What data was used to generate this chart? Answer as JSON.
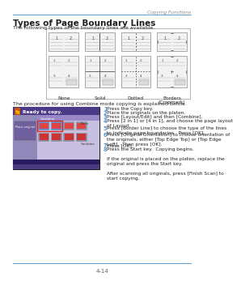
{
  "page_header_right": "Copying Functions",
  "page_header_line_color": "#5b9bd5",
  "title": "Types of Page Boundary Lines",
  "subtitle": "The following types of the boundary lines are available.",
  "boundary_labels": [
    "None",
    "Solid",
    "Dotted",
    "Borders\n(Cropmark)"
  ],
  "procedure_intro": "The procedure for using Combine mode copying is explained below.",
  "steps_raw": [
    [
      1,
      "Press the Copy key.",
      "Copy"
    ],
    [
      2,
      "Place the originals on the platen.",
      null
    ],
    [
      3,
      "Press [Layout/Edit] and then [Combine].",
      null
    ],
    [
      4,
      "Press [2 in 1] or [4 in 1], and choose the page layout\nof Layout.",
      null
    ],
    [
      5,
      "Press [Border Line] to choose the type of the lines\nto indicate page boundaries.  Press [OK].",
      null
    ],
    [
      6,
      "Press [Original Orientation] to choose orientation of\nthe originals, either [Top Edge Top] or [Top Edge\nLeft].  Then press [OK].",
      null
    ],
    [
      7,
      "Press [OK].",
      null
    ],
    [
      8,
      "Press the Start key.  Copying begins.\n\nIf the original is placed on the platen, replace the\noriginal and press the Start key.\n\nAfter scanning all originals, press [Finish Scan] to\nstart copying.",
      "Start"
    ]
  ],
  "page_footer": "4-14",
  "bg_color": "#ffffff",
  "text_color": "#231f20",
  "step_num_color": "#5b9bd5",
  "box_border_color": "#aaaaaa",
  "screen_bg": "#6a5aaa",
  "screen_header_bg": "#4a3a88",
  "screen_content_bg": "#c8c0e0",
  "screen_left_panel_bg": "#9088b8"
}
